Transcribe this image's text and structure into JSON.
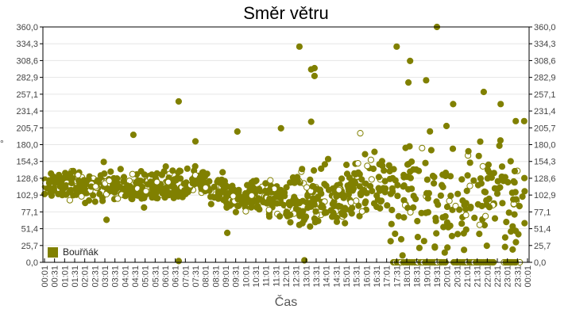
{
  "chart_data": {
    "type": "scatter",
    "title": "Směr větru",
    "xlabel": "Čas",
    "ylabel": "°",
    "ylim": [
      0,
      360
    ],
    "y_ticks": [
      "0,0",
      "25,7",
      "51,4",
      "77,1",
      "102,9",
      "128,6",
      "154,3",
      "180,0",
      "205,7",
      "231,4",
      "257,1",
      "282,9",
      "308,6",
      "334,3",
      "360,0"
    ],
    "x_ticks": [
      "00:01",
      "00:31",
      "01:01",
      "01:31",
      "02:01",
      "02:31",
      "03:01",
      "03:31",
      "04:01",
      "04:31",
      "05:01",
      "05:31",
      "06:01",
      "06:31",
      "07:01",
      "07:31",
      "08:01",
      "08:31",
      "09:01",
      "09:31",
      "10:01",
      "10:31",
      "11:01",
      "11:31",
      "12:01",
      "12:31",
      "13:01",
      "13:31",
      "14:01",
      "14:31",
      "15:01",
      "15:31",
      "16:01",
      "16:31",
      "17:01",
      "17:31",
      "18:01",
      "18:31",
      "19:01",
      "19:31",
      "20:01",
      "20:31",
      "21:01",
      "21:31",
      "22:01",
      "22:31",
      "23:01",
      "23:31",
      "00:01"
    ],
    "grid": true,
    "legend_position": "bottom-left inside",
    "series": [
      {
        "name": "Bouřňák",
        "color": "#808000",
        "description": "Wind direction samples roughly every 1-2 minutes over 24h",
        "hourly_profile": [
          {
            "hour": 0,
            "center": 118,
            "spread": 18
          },
          {
            "hour": 1,
            "center": 118,
            "spread": 18
          },
          {
            "hour": 2,
            "center": 115,
            "spread": 18
          },
          {
            "hour": 3,
            "center": 115,
            "spread": 20
          },
          {
            "hour": 4,
            "center": 112,
            "spread": 20
          },
          {
            "hour": 5,
            "center": 115,
            "spread": 20
          },
          {
            "hour": 6,
            "center": 118,
            "spread": 22
          },
          {
            "hour": 7,
            "center": 120,
            "spread": 20
          },
          {
            "hour": 8,
            "center": 110,
            "spread": 18
          },
          {
            "hour": 9,
            "center": 100,
            "spread": 18
          },
          {
            "hour": 10,
            "center": 100,
            "spread": 20
          },
          {
            "hour": 11,
            "center": 95,
            "spread": 25
          },
          {
            "hour": 12,
            "center": 95,
            "spread": 35
          },
          {
            "hour": 13,
            "center": 100,
            "spread": 35
          },
          {
            "hour": 14,
            "center": 95,
            "spread": 35
          },
          {
            "hour": 15,
            "center": 110,
            "spread": 40
          },
          {
            "hour": 16,
            "center": 120,
            "spread": 50
          },
          {
            "hour": 17,
            "center": 110,
            "spread": 70
          },
          {
            "hour": 18,
            "center": 110,
            "spread": 80
          },
          {
            "hour": 19,
            "center": 80,
            "spread": 80
          },
          {
            "hour": 20,
            "center": 90,
            "spread": 75
          },
          {
            "hour": 21,
            "center": 100,
            "spread": 75
          },
          {
            "hour": 22,
            "center": 110,
            "spread": 70
          },
          {
            "hour": 23,
            "center": 100,
            "spread": 60
          }
        ],
        "notable_points": [
          {
            "time": "06:40",
            "value": 246
          },
          {
            "time": "06:40",
            "value": 2
          },
          {
            "time": "03:05",
            "value": 65
          },
          {
            "time": "04:25",
            "value": 195
          },
          {
            "time": "07:30",
            "value": 185
          },
          {
            "time": "09:35",
            "value": 200
          },
          {
            "time": "09:05",
            "value": 45
          },
          {
            "time": "11:45",
            "value": 205
          },
          {
            "time": "12:40",
            "value": 330
          },
          {
            "time": "13:15",
            "value": 295
          },
          {
            "time": "13:25",
            "value": 297
          },
          {
            "time": "13:25",
            "value": 285
          },
          {
            "time": "13:15",
            "value": 215
          },
          {
            "time": "12:55",
            "value": 3
          },
          {
            "time": "17:30",
            "value": 330
          },
          {
            "time": "18:10",
            "value": 308
          },
          {
            "time": "18:05",
            "value": 275
          },
          {
            "time": "19:30",
            "value": 360
          },
          {
            "time": "22:40",
            "value": 242
          },
          {
            "time": "23:25",
            "value": 216
          },
          {
            "time": "23:50",
            "value": 216
          }
        ],
        "zero_cluster_ranges": [
          [
            "17:20",
            "20:00"
          ],
          [
            "20:20",
            "22:20"
          ],
          [
            "22:50",
            "23:30"
          ]
        ]
      }
    ]
  },
  "legend": {
    "label": "Bouřňák"
  }
}
